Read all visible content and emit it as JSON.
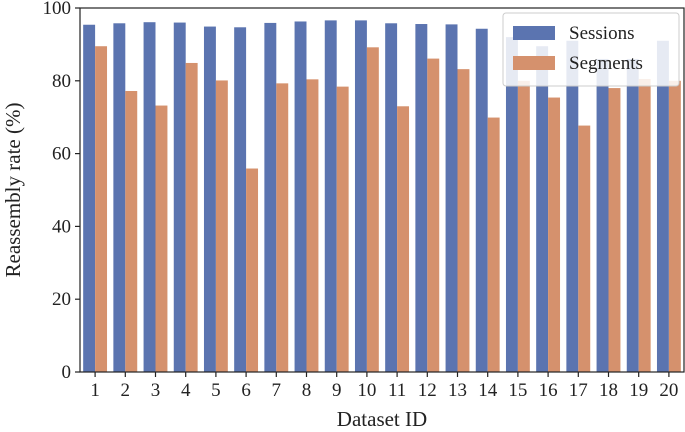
{
  "chart_data": {
    "type": "bar",
    "title": "",
    "xlabel": "Dataset ID",
    "ylabel": "Reassembly rate (%)",
    "ylim": [
      0,
      100
    ],
    "yticks": [
      0,
      20,
      40,
      60,
      80,
      100
    ],
    "categories": [
      "1",
      "2",
      "3",
      "4",
      "5",
      "6",
      "7",
      "8",
      "9",
      "10",
      "11",
      "12",
      "13",
      "14",
      "15",
      "16",
      "17",
      "18",
      "19",
      "20"
    ],
    "series": [
      {
        "name": "Sessions",
        "color": "#5b74b0",
        "values": [
          95.4,
          95.8,
          96.1,
          96.0,
          94.9,
          94.7,
          95.9,
          96.3,
          96.6,
          96.6,
          95.8,
          95.6,
          95.5,
          94.3,
          92.0,
          89.5,
          91.0,
          86.0,
          86.0,
          91.0
        ]
      },
      {
        "name": "Segments",
        "color": "#d5916d",
        "values": [
          89.5,
          77.2,
          73.2,
          84.9,
          80.1,
          55.9,
          79.3,
          80.4,
          78.4,
          89.2,
          73.0,
          86.1,
          83.2,
          69.9,
          80.0,
          75.4,
          67.7,
          78.0,
          80.5,
          80.0
        ]
      }
    ],
    "grid": false,
    "legend_position": "top-right"
  }
}
